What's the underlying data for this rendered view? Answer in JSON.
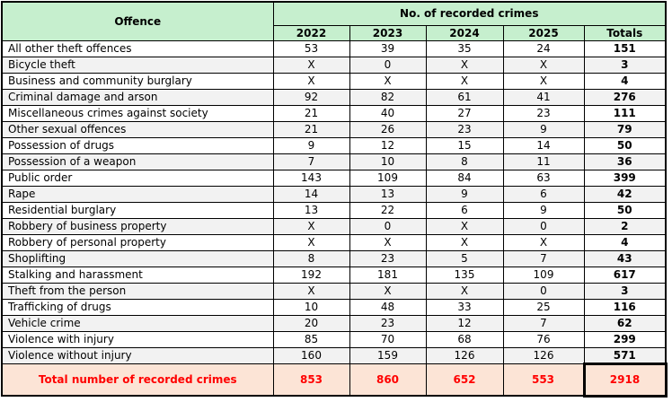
{
  "chart_data": {
    "type": "table",
    "col1_header": "Offence",
    "group_header": "No. of recorded crimes",
    "year_columns": [
      "2022",
      "2023",
      "2024",
      "2025"
    ],
    "totals_header": "Totals",
    "rows": [
      {
        "offence": "All other theft offences",
        "values": [
          "53",
          "39",
          "35",
          "24"
        ],
        "total": "151"
      },
      {
        "offence": "Bicycle theft",
        "values": [
          "X",
          "0",
          "X",
          "X"
        ],
        "total": "3"
      },
      {
        "offence": "Business and community burglary",
        "values": [
          "X",
          "X",
          "X",
          "X"
        ],
        "total": "4"
      },
      {
        "offence": "Criminal damage and arson",
        "values": [
          "92",
          "82",
          "61",
          "41"
        ],
        "total": "276"
      },
      {
        "offence": "Miscellaneous crimes against society",
        "values": [
          "21",
          "40",
          "27",
          "23"
        ],
        "total": "111"
      },
      {
        "offence": "Other sexual offences",
        "values": [
          "21",
          "26",
          "23",
          "9"
        ],
        "total": "79"
      },
      {
        "offence": "Possession of drugs",
        "values": [
          "9",
          "12",
          "15",
          "14"
        ],
        "total": "50"
      },
      {
        "offence": "Possession of a weapon",
        "values": [
          "7",
          "10",
          "8",
          "11"
        ],
        "total": "36"
      },
      {
        "offence": "Public order",
        "values": [
          "143",
          "109",
          "84",
          "63"
        ],
        "total": "399"
      },
      {
        "offence": "Rape",
        "values": [
          "14",
          "13",
          "9",
          "6"
        ],
        "total": "42"
      },
      {
        "offence": "Residential burglary",
        "values": [
          "13",
          "22",
          "6",
          "9"
        ],
        "total": "50"
      },
      {
        "offence": "Robbery of business property",
        "values": [
          "X",
          "0",
          "X",
          "0"
        ],
        "total": "2"
      },
      {
        "offence": "Robbery of personal property",
        "values": [
          "X",
          "X",
          "X",
          "X"
        ],
        "total": "4"
      },
      {
        "offence": "Shoplifting",
        "values": [
          "8",
          "23",
          "5",
          "7"
        ],
        "total": "43"
      },
      {
        "offence": "Stalking and harassment",
        "values": [
          "192",
          "181",
          "135",
          "109"
        ],
        "total": "617"
      },
      {
        "offence": "Theft from the person",
        "values": [
          "X",
          "X",
          "X",
          "0"
        ],
        "total": "3"
      },
      {
        "offence": "Trafficking of drugs",
        "values": [
          "10",
          "48",
          "33",
          "25"
        ],
        "total": "116"
      },
      {
        "offence": "Vehicle crime",
        "values": [
          "20",
          "23",
          "12",
          "7"
        ],
        "total": "62"
      },
      {
        "offence": "Violence with injury",
        "values": [
          "85",
          "70",
          "68",
          "76"
        ],
        "total": "299"
      },
      {
        "offence": "Violence without injury",
        "values": [
          "160",
          "159",
          "126",
          "126"
        ],
        "total": "571"
      }
    ],
    "footer": {
      "label": "Total number of recorded crimes",
      "values": [
        "853",
        "860",
        "652",
        "553"
      ],
      "grand_total": "2918"
    }
  },
  "colors": {
    "header_bg": "#c6efce",
    "stripe_bg": "#f2f2f2",
    "footer_bg": "#fce4d6",
    "accent_red": "#ff0000",
    "border": "#000000"
  }
}
